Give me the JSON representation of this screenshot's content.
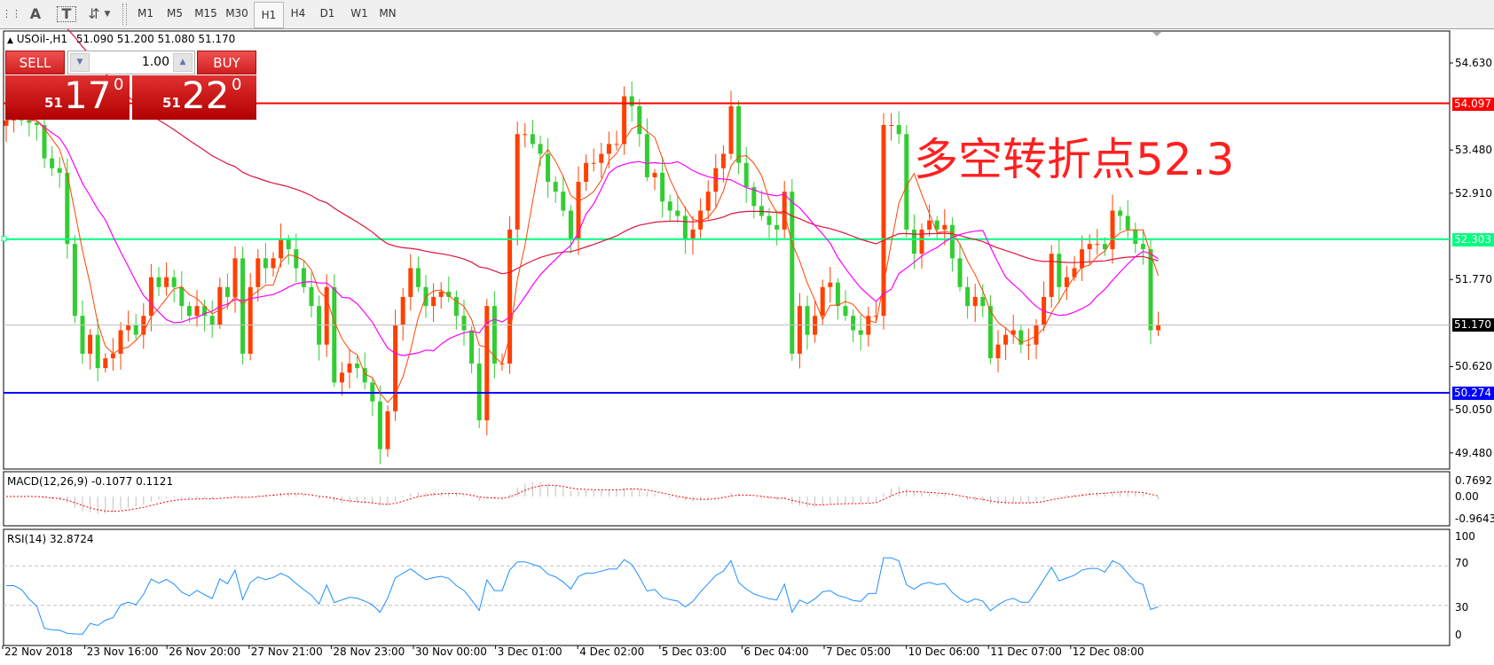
{
  "toolbar": {
    "tools": [
      {
        "name": "grid-icon",
        "glyph": "⋮⋮"
      },
      {
        "name": "text-icon",
        "glyph": "A"
      },
      {
        "name": "text-label-icon",
        "glyph": "T"
      },
      {
        "name": "arrows-icon",
        "glyph": "⇵"
      }
    ],
    "timeframes": [
      "M1",
      "M5",
      "M15",
      "M30",
      "H1",
      "H4",
      "D1",
      "W1",
      "MN"
    ],
    "active_timeframe": "H1"
  },
  "header": {
    "symbol": "USOil-,H1",
    "ohlc": "51.090 51.200 51.080 51.170"
  },
  "trade_panel": {
    "sell_label": "SELL",
    "buy_label": "BUY",
    "lot": "1.00",
    "sell_price": {
      "prefix": "51",
      "main": "17",
      "sup": "0"
    },
    "buy_price": {
      "prefix": "51",
      "main": "22",
      "sup": "0"
    }
  },
  "annotation": "多空转折点52.3",
  "colors": {
    "bull": "#ff4000",
    "bear": "#32cd32",
    "ma_fast": "#ff4500",
    "ma_mid": "#ff00ff",
    "ma_slow": "#dc143c",
    "resistance": "#ff0000",
    "pivot": "#00ff7f",
    "support": "#0000ff",
    "current": "#000000",
    "rsi": "#1e90ff",
    "macd_signal": "#ff0000",
    "macd_hist": "#c0c0c0"
  },
  "levels": {
    "resistance": "54.097",
    "pivot": "52.303",
    "support": "50.274",
    "current": "51.170"
  },
  "price_axis": [
    "54.630",
    "53.480",
    "52.910",
    "51.770",
    "50.620",
    "50.050",
    "49.480"
  ],
  "time_axis": [
    "22 Nov 2018",
    "23 Nov 16:00",
    "26 Nov 20:00",
    "27 Nov 21:00",
    "28 Nov 23:00",
    "30 Nov 00:00",
    "3 Dec 01:00",
    "4 Dec 02:00",
    "5 Dec 03:00",
    "6 Dec 04:00",
    "7 Dec 05:00",
    "10 Dec 06:00",
    "11 Dec 07:00",
    "12 Dec 08:00"
  ],
  "macd": {
    "title": "MACD(12,26,9) -0.1077 0.1121",
    "axis": [
      "0.7692",
      "0.00",
      "-0.9643"
    ]
  },
  "rsi": {
    "title": "RSI(14) 32.8724",
    "axis": [
      "100",
      "70",
      "30",
      "0"
    ]
  },
  "chart_data": {
    "type": "candlestick",
    "symbol": "USOil-",
    "timeframe": "H1",
    "ylim": [
      49.3,
      55.0
    ],
    "close": [
      53.87,
      53.94,
      53.87,
      53.84,
      53.81,
      53.37,
      53.24,
      53.18,
      52.24,
      51.29,
      50.79,
      51.04,
      50.6,
      50.73,
      50.79,
      51.1,
      51.17,
      51.04,
      51.29,
      51.8,
      51.67,
      51.8,
      51.67,
      51.42,
      51.29,
      51.42,
      51.29,
      51.17,
      51.67,
      51.54,
      52.05,
      50.79,
      51.67,
      52.05,
      51.92,
      52.05,
      52.3,
      52.17,
      51.92,
      51.67,
      51.42,
      50.91,
      51.67,
      50.41,
      50.54,
      50.66,
      50.6,
      50.41,
      50.16,
      49.53,
      50.03,
      51.17,
      51.54,
      51.92,
      51.67,
      51.42,
      51.54,
      51.61,
      51.54,
      51.29,
      51.1,
      50.66,
      49.91,
      51.42,
      50.66,
      50.66,
      52.43,
      53.69,
      53.69,
      53.56,
      53.43,
      53.06,
      52.93,
      52.68,
      52.3,
      53.06,
      53.31,
      53.31,
      53.43,
      53.56,
      53.56,
      54.19,
      54.06,
      53.69,
      53.12,
      53.18,
      52.8,
      52.68,
      52.61,
      52.3,
      52.43,
      52.68,
      52.93,
      53.24,
      53.43,
      54.06,
      53.31,
      52.99,
      52.74,
      52.61,
      52.49,
      52.43,
      52.93,
      50.79,
      51.42,
      51.04,
      51.29,
      51.67,
      51.73,
      51.42,
      51.29,
      51.1,
      51.04,
      51.29,
      51.29,
      53.81,
      53.81,
      53.69,
      52.43,
      52.11,
      52.43,
      52.55,
      52.43,
      52.49,
      52.05,
      51.67,
      51.42,
      51.54,
      51.42,
      50.73,
      50.91,
      51.04,
      51.1,
      50.91,
      50.91,
      51.17,
      51.54,
      52.11,
      51.67,
      51.8,
      51.92,
      52.17,
      52.24,
      52.24,
      52.17,
      52.68,
      52.61,
      52.43,
      52.24,
      52.17,
      51.1,
      51.17
    ]
  }
}
